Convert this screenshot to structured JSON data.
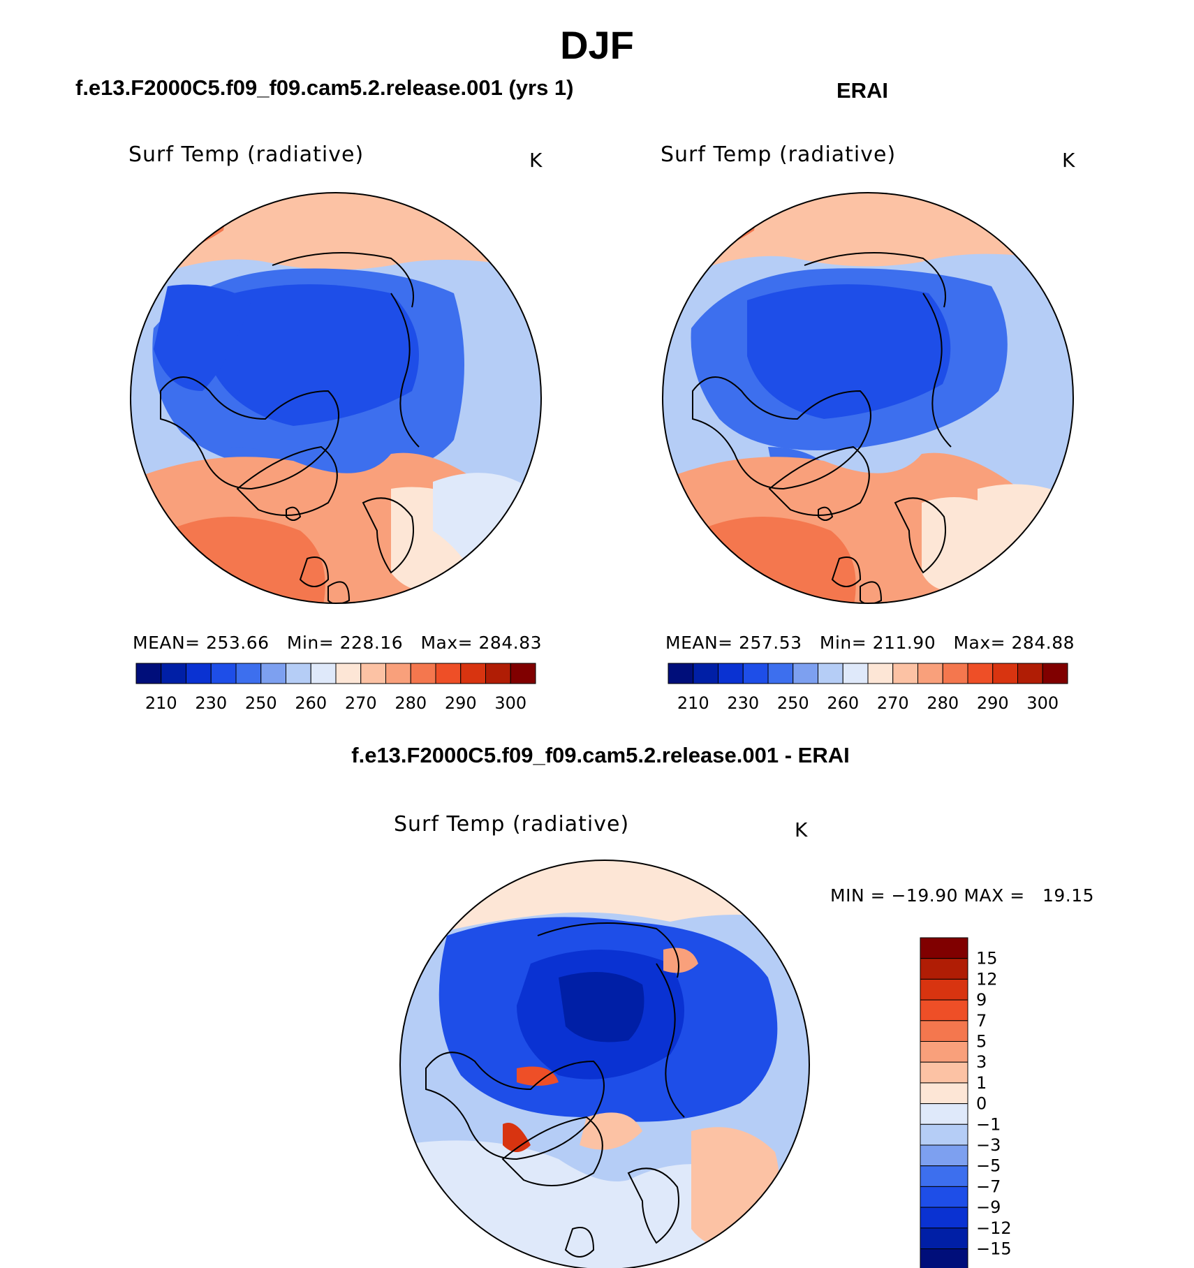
{
  "figure": {
    "title": "DJF",
    "model_title": "f.e13.F2000C5.f09_f09.cam5.2.release.001 (yrs 1)",
    "obs_title": "ERAI",
    "diff_title": "f.e13.F2000C5.f09_f09.cam5.2.release.001 - ERAI"
  },
  "panels": {
    "model": {
      "variable": "Surf Temp (radiative)",
      "units": "K",
      "stats": "MEAN= 253.66   Min= 228.16   Max= 284.83"
    },
    "obs": {
      "variable": "Surf Temp (radiative)",
      "units": "K",
      "stats": "MEAN= 257.53   Min= 211.90   Max= 284.88"
    },
    "diff": {
      "variable": "Surf Temp (radiative)",
      "units": "K",
      "minmax": "MIN = −19.90 MAX =   19.15"
    }
  },
  "colors": {
    "abs_scale": [
      "#000e7a",
      "#001fa6",
      "#0a32d2",
      "#1e4ee8",
      "#3d6fee",
      "#7da0f0",
      "#b5cdf6",
      "#dfe9fa",
      "#fde6d6",
      "#fcc2a4",
      "#f9a07b",
      "#f4774e",
      "#ee4f27",
      "#d83410",
      "#b01d05",
      "#800000"
    ],
    "diff_scale": [
      "#000e7a",
      "#001fa6",
      "#0a32d2",
      "#1e4ee8",
      "#3d6fee",
      "#7da0f0",
      "#b5cdf6",
      "#dfe9fa",
      "#fde6d6",
      "#fcc2a4",
      "#f9a07b",
      "#f4774e",
      "#ee4f27",
      "#d83410",
      "#b01d05",
      "#800000"
    ]
  },
  "chart_data": [
    {
      "type": "heatmap",
      "projection": "north polar stereographic",
      "title": "f.e13.F2000C5.f09_f09.cam5.2.release.001 (yrs 1)",
      "variable": "Surf Temp (radiative)",
      "units": "K",
      "colorbar_ticks": [
        "210",
        "230",
        "250",
        "260",
        "270",
        "280",
        "290",
        "300"
      ],
      "mean": 253.66,
      "min": 228.16,
      "max": 284.83
    },
    {
      "type": "heatmap",
      "projection": "north polar stereographic",
      "title": "ERAI",
      "variable": "Surf Temp (radiative)",
      "units": "K",
      "colorbar_ticks": [
        "210",
        "230",
        "250",
        "260",
        "270",
        "280",
        "290",
        "300"
      ],
      "mean": 257.53,
      "min": 211.9,
      "max": 284.88
    },
    {
      "type": "heatmap",
      "projection": "north polar stereographic",
      "title": "f.e13.F2000C5.f09_f09.cam5.2.release.001 - ERAI",
      "variable": "Surf Temp (radiative)",
      "units": "K",
      "colorbar_ticks": [
        "15",
        "12",
        "9",
        "7",
        "5",
        "3",
        "1",
        "0",
        "−1",
        "−3",
        "−5",
        "−7",
        "−9",
        "−12",
        "−15"
      ],
      "min": -19.9,
      "max": 19.15
    }
  ]
}
